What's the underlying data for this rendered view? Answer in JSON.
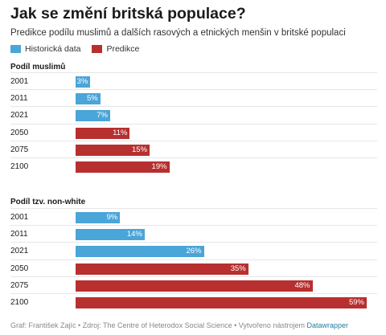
{
  "title": "Jak se změní britská populace?",
  "subtitle": "Predikce podílu muslimů a dalších rasových a etnických menšin v britské populaci",
  "legend": [
    {
      "label": "Historická data",
      "color": "#4aa5d8"
    },
    {
      "label": "Predikce",
      "color": "#b72f2f"
    }
  ],
  "footer": {
    "text": "Graf: František Zajíc • Zdroj: The Centre of Heterodox Social Science • Vytvořeno nástrojem ",
    "link": "Datawrapper"
  },
  "chart_data": [
    {
      "type": "bar",
      "title": "Podíl muslimů",
      "categories": [
        "2001",
        "2011",
        "2021",
        "2050",
        "2075",
        "2100"
      ],
      "values": [
        3,
        5,
        7,
        11,
        15,
        19
      ],
      "value_labels": [
        "3%",
        "5%",
        "7%",
        "11%",
        "15%",
        "19%"
      ],
      "kinds": [
        "Historická data",
        "Historická data",
        "Historická data",
        "Predikce",
        "Predikce",
        "Predikce"
      ],
      "xlim": [
        0,
        59
      ]
    },
    {
      "type": "bar",
      "title": "Podíl tzv. non-white",
      "categories": [
        "2001",
        "2011",
        "2021",
        "2050",
        "2075",
        "2100"
      ],
      "values": [
        9,
        14,
        26,
        35,
        48,
        59
      ],
      "value_labels": [
        "9%",
        "14%",
        "26%",
        "35%",
        "48%",
        "59%"
      ],
      "kinds": [
        "Historická data",
        "Historická data",
        "Historická data",
        "Predikce",
        "Predikce",
        "Predikce"
      ],
      "xlim": [
        0,
        59
      ]
    }
  ]
}
